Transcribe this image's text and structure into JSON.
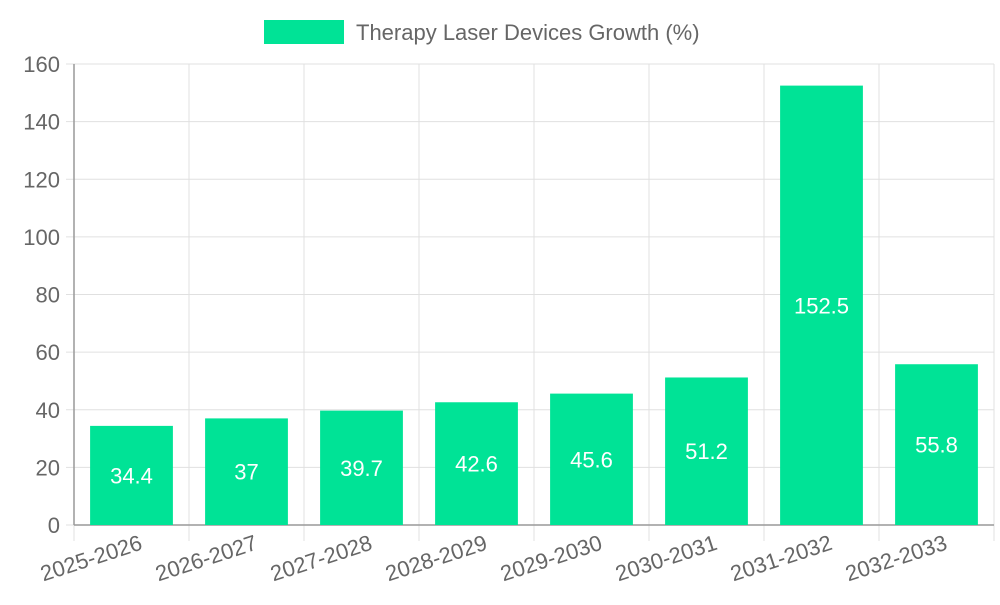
{
  "chart_data": {
    "type": "bar",
    "categories": [
      "2025-2026",
      "2026-2027",
      "2027-2028",
      "2028-2029",
      "2029-2030",
      "2030-2031",
      "2031-2032",
      "2032-2033"
    ],
    "series": [
      {
        "name": "Therapy Laser Devices Growth (%)",
        "values": [
          34.4,
          37,
          39.7,
          42.6,
          45.6,
          51.2,
          152.5,
          55.8
        ],
        "color": "#00e396"
      }
    ],
    "data_labels": [
      "34.4",
      "37",
      "39.7",
      "42.6",
      "45.6",
      "51.2",
      "152.5",
      "55.8"
    ],
    "ylim": [
      0,
      160
    ],
    "yticks": [
      0,
      20,
      40,
      60,
      80,
      100,
      120,
      140,
      160
    ],
    "grid": true,
    "legend_position": "top-center",
    "colors": {
      "bar": "#00e396",
      "grid": "#e0e0e0",
      "axis": "#999999",
      "text": "#666666",
      "label": "#ffffff"
    }
  }
}
